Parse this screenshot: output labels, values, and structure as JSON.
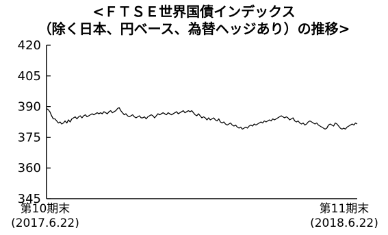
{
  "chart_data": {
    "type": "line",
    "title_lines": [
      "<ＦＴＳＥ世界国債インデックス",
      "（除く日本、円ベース、為替ヘッジあり）の推移>"
    ],
    "x_axis": {
      "start_label": [
        "第10期末",
        "(2017.6.22)"
      ],
      "end_label": [
        "第11期末",
        "(2018.6.22)"
      ],
      "range": [
        "2017-06-22",
        "2018-06-22"
      ]
    },
    "y_axis": {
      "ylim": [
        345,
        420
      ],
      "ticks": [
        420,
        405,
        390,
        375,
        360,
        345
      ]
    },
    "grid": false,
    "legend": "none",
    "series": [
      {
        "color": "#000000",
        "values": [
          389.0,
          388.5,
          387.5,
          385.5,
          384.0,
          384.0,
          383.0,
          382.0,
          382.5,
          381.5,
          382.0,
          383.0,
          382.0,
          383.5,
          382.5,
          384.0,
          384.5,
          385.0,
          384.0,
          385.0,
          385.5,
          384.5,
          385.5,
          386.0,
          385.0,
          385.5,
          386.0,
          386.5,
          386.0,
          386.5,
          387.0,
          386.5,
          387.0,
          386.5,
          387.5,
          387.0,
          386.5,
          387.5,
          388.0,
          387.0,
          387.5,
          388.0,
          389.0,
          389.5,
          388.0,
          387.0,
          386.0,
          386.5,
          385.5,
          385.0,
          385.5,
          386.0,
          385.0,
          384.5,
          385.0,
          385.5,
          384.5,
          384.5,
          385.0,
          384.0,
          385.0,
          385.5,
          386.0,
          385.5,
          384.5,
          385.5,
          386.5,
          386.0,
          386.5,
          387.0,
          386.5,
          386.0,
          387.0,
          386.5,
          386.0,
          386.5,
          387.0,
          387.5,
          386.5,
          387.0,
          387.5,
          388.0,
          387.0,
          387.5,
          388.0,
          387.5,
          388.0,
          387.0,
          386.0,
          385.5,
          386.5,
          385.5,
          384.5,
          385.0,
          384.5,
          383.5,
          384.5,
          383.5,
          384.0,
          384.5,
          383.5,
          383.0,
          384.0,
          382.5,
          382.0,
          382.5,
          381.5,
          381.0,
          381.5,
          382.0,
          381.0,
          380.5,
          381.0,
          380.0,
          379.5,
          380.0,
          379.0,
          379.5,
          380.0,
          379.5,
          380.5,
          381.0,
          380.5,
          381.5,
          381.0,
          381.5,
          382.0,
          382.5,
          382.0,
          383.0,
          382.5,
          383.0,
          383.5,
          383.0,
          384.0,
          383.5,
          384.0,
          384.5,
          385.0,
          385.5,
          385.0,
          384.5,
          385.0,
          384.5,
          383.5,
          384.0,
          384.5,
          383.0,
          382.5,
          383.0,
          382.0,
          381.5,
          382.0,
          381.0,
          381.5,
          382.5,
          383.0,
          382.5,
          382.0,
          381.5,
          382.0,
          381.0,
          380.5,
          380.0,
          379.5,
          379.0,
          379.5,
          381.0,
          381.5,
          381.0,
          380.5,
          382.0,
          381.5,
          380.5,
          379.5,
          379.0,
          379.5,
          379.0,
          380.0,
          380.5,
          381.0,
          381.5,
          381.0,
          382.0,
          381.5
        ]
      }
    ]
  }
}
